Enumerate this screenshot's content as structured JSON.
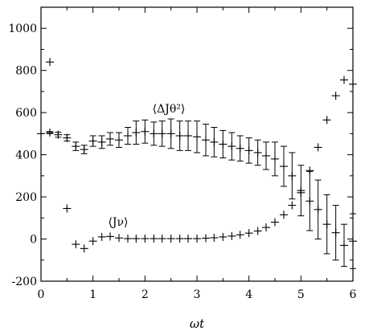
{
  "chart_data": {
    "type": "scatter",
    "title": "",
    "xlabel": "ωt",
    "ylabel": "",
    "xlim": [
      0,
      6
    ],
    "ylim": [
      -200,
      1100
    ],
    "grid": false,
    "x_ticks": [
      0,
      1,
      2,
      3,
      4,
      5,
      6
    ],
    "x_tick_labels": [
      "0",
      "1",
      "2",
      "3",
      "4",
      "5",
      "6"
    ],
    "y_ticks": [
      -200,
      0,
      200,
      400,
      600,
      800,
      1000
    ],
    "y_tick_labels": [
      "-200",
      "0",
      "200",
      "400",
      "600",
      "800",
      "1000"
    ],
    "annotations": [
      {
        "text": "⟨ΔJθ²⟩",
        "x": 2.5,
        "y": 620
      },
      {
        "text": "⟨Jν⟩",
        "x": 1.4,
        "y": 75
      }
    ],
    "series": [
      {
        "marker": "plus",
        "points": [
          [
            0.0,
            500,
            0
          ],
          [
            0.17,
            505,
            5
          ],
          [
            0.33,
            495,
            12
          ],
          [
            0.5,
            480,
            15
          ],
          [
            0.67,
            440,
            20
          ],
          [
            0.83,
            425,
            20
          ],
          [
            1.0,
            465,
            25
          ],
          [
            1.17,
            460,
            30
          ],
          [
            1.33,
            475,
            30
          ],
          [
            1.5,
            470,
            35
          ],
          [
            1.67,
            490,
            40
          ],
          [
            1.83,
            505,
            55
          ],
          [
            2.0,
            510,
            55
          ],
          [
            2.17,
            500,
            55
          ],
          [
            2.33,
            500,
            60
          ],
          [
            2.5,
            500,
            70
          ],
          [
            2.67,
            490,
            70
          ],
          [
            2.83,
            490,
            70
          ],
          [
            3.0,
            485,
            75
          ],
          [
            3.17,
            470,
            75
          ],
          [
            3.33,
            460,
            70
          ],
          [
            3.5,
            450,
            65
          ],
          [
            3.67,
            440,
            65
          ],
          [
            3.83,
            430,
            60
          ],
          [
            4.0,
            420,
            60
          ],
          [
            4.17,
            410,
            60
          ],
          [
            4.33,
            395,
            65
          ],
          [
            4.5,
            380,
            80
          ],
          [
            4.67,
            345,
            95
          ],
          [
            4.83,
            300,
            110
          ],
          [
            5.0,
            230,
            120
          ],
          [
            5.17,
            180,
            140
          ],
          [
            5.33,
            140,
            140
          ],
          [
            5.5,
            70,
            140
          ],
          [
            5.67,
            30,
            130
          ],
          [
            5.83,
            -30,
            100
          ],
          [
            6.0,
            -10,
            130
          ]
        ]
      },
      {
        "marker": "plus",
        "points": [
          [
            0.17,
            840,
            0
          ],
          [
            0.5,
            145,
            0
          ],
          [
            0.67,
            -25,
            0
          ],
          [
            0.83,
            -45,
            0
          ],
          [
            1.0,
            -10,
            0
          ],
          [
            1.17,
            10,
            0
          ],
          [
            1.33,
            12,
            0
          ],
          [
            1.5,
            5,
            0
          ],
          [
            1.67,
            2,
            0
          ],
          [
            1.83,
            2,
            0
          ],
          [
            2.0,
            2,
            0
          ],
          [
            2.17,
            2,
            0
          ],
          [
            2.33,
            2,
            0
          ],
          [
            2.5,
            2,
            0
          ],
          [
            2.67,
            2,
            0
          ],
          [
            2.83,
            2,
            0
          ],
          [
            3.0,
            2,
            0
          ],
          [
            3.17,
            4,
            0
          ],
          [
            3.33,
            6,
            0
          ],
          [
            3.5,
            10,
            0
          ],
          [
            3.67,
            14,
            0
          ],
          [
            3.83,
            20,
            0
          ],
          [
            4.0,
            28,
            0
          ],
          [
            4.17,
            38,
            0
          ],
          [
            4.33,
            55,
            0
          ],
          [
            4.5,
            80,
            0
          ],
          [
            4.67,
            115,
            0
          ],
          [
            4.83,
            160,
            0
          ],
          [
            5.0,
            220,
            0
          ],
          [
            5.17,
            325,
            0
          ],
          [
            5.33,
            435,
            0
          ],
          [
            5.5,
            565,
            0
          ],
          [
            5.67,
            680,
            0
          ],
          [
            5.83,
            755,
            0
          ],
          [
            6.0,
            735,
            0
          ]
        ]
      }
    ]
  }
}
